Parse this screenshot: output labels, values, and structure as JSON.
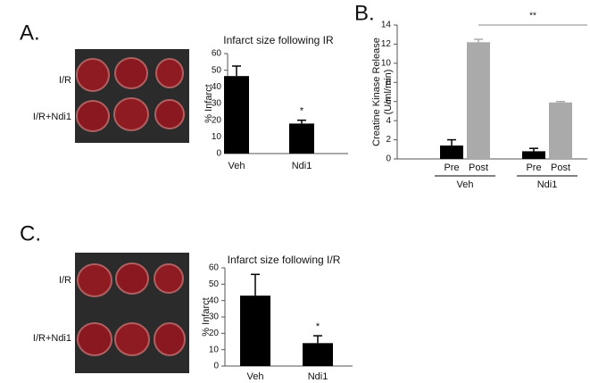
{
  "panels": [
    {
      "label": "A.",
      "photo_rows": [
        "I/R",
        "I/R+Ndi1"
      ]
    },
    {
      "label": "B."
    },
    {
      "label": "C.",
      "photo_rows": [
        "I/R",
        "I/R+Ndi1"
      ]
    }
  ],
  "chart_data": [
    {
      "type": "bar",
      "title": "Infarct size following IR",
      "ylabel": "% Infarct",
      "categories": [
        "Veh",
        "Ndi1"
      ],
      "values": [
        46.5,
        18
      ],
      "errors": [
        6,
        2
      ],
      "colors": [
        "#000000",
        "#000000"
      ],
      "value_annotations": [
        null,
        "*"
      ],
      "ylim": [
        0,
        60
      ],
      "yticks": [
        0,
        10,
        20,
        30,
        40,
        50,
        60
      ]
    },
    {
      "type": "bar",
      "ylabel": [
        "Creatine Kinase Release",
        "(U/ml/min)"
      ],
      "categories": [
        "Pre",
        "Post",
        "Pre",
        "Post"
      ],
      "groups": [
        "Veh",
        "Ndi1"
      ],
      "values": [
        1.4,
        12.2,
        0.8,
        5.9
      ],
      "errors": [
        0.6,
        0.3,
        0.3,
        0.1
      ],
      "colors": [
        "#000000",
        "#aaaaaa",
        "#000000",
        "#aaaaaa"
      ],
      "comparison": "**",
      "ylim": [
        0,
        14
      ],
      "yticks": [
        0,
        2,
        4,
        6,
        8,
        10,
        12,
        14
      ]
    },
    {
      "type": "bar",
      "title": "Infarct size following I/R",
      "ylabel": "% Infarct",
      "categories": [
        "Veh",
        "Ndi1"
      ],
      "values": [
        43,
        14
      ],
      "errors": [
        13,
        4.5
      ],
      "colors": [
        "#000000",
        "#000000"
      ],
      "value_annotations": [
        null,
        "*"
      ],
      "ylim": [
        0,
        60
      ],
      "yticks": [
        0,
        10,
        20,
        30,
        40,
        50,
        60
      ]
    }
  ]
}
